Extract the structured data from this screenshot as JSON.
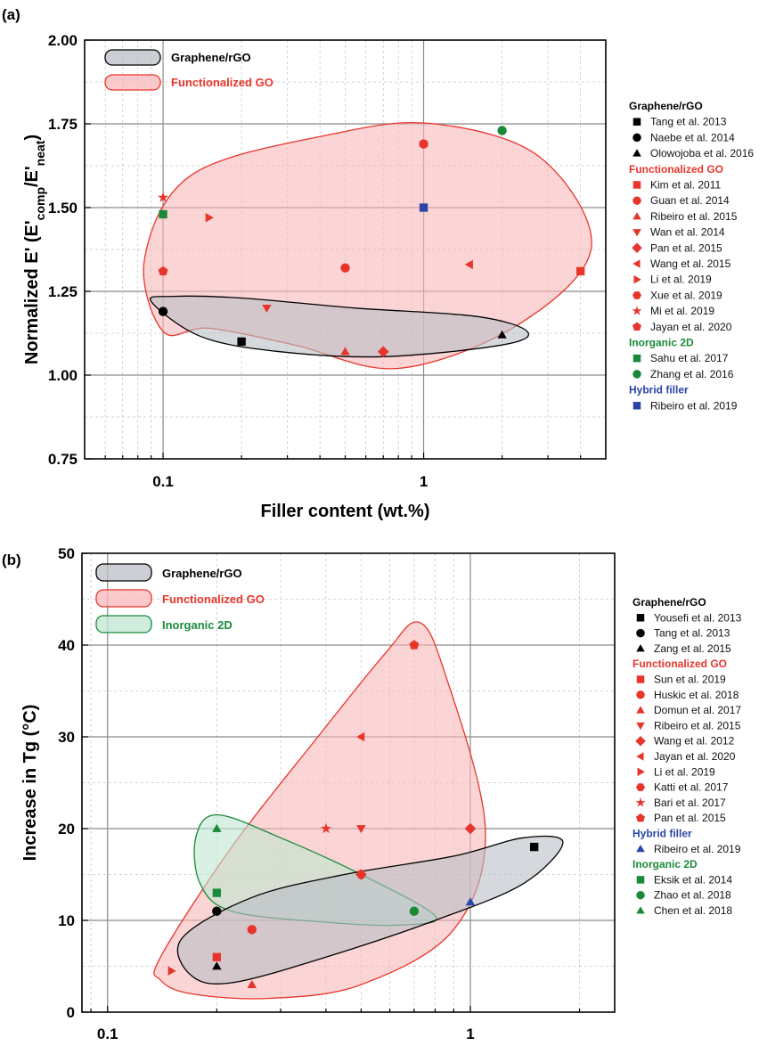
{
  "colors": {
    "graphene": "#000000",
    "functionalized": "#e8352b",
    "inorganic": "#1a8a3a",
    "hybrid": "#2a44a8",
    "graphene_fill": "#b9bec4",
    "functionalized_fill": "#f8b7b9",
    "inorganic_fill": "#bfe6d2"
  },
  "chart_data": [
    {
      "id": "a",
      "panel_label": "(a)",
      "type": "scatter",
      "xscale": "log",
      "xlim": [
        0.05,
        5
      ],
      "ylim": [
        0.75,
        2.0
      ],
      "xticks": [
        {
          "v": 0.1,
          "label": "0.1"
        },
        {
          "v": 1,
          "label": "1"
        }
      ],
      "yticks": [
        {
          "v": 0.75,
          "label": "0.75"
        },
        {
          "v": 1.0,
          "label": "1.00"
        },
        {
          "v": 1.25,
          "label": "1.25"
        },
        {
          "v": 1.5,
          "label": "1.50"
        },
        {
          "v": 1.75,
          "label": "1.75"
        },
        {
          "v": 2.0,
          "label": "2.00"
        }
      ],
      "xlabel": "Filler content (wt.%)",
      "ylabel_parts": [
        "Normalized E' (E'",
        "comp",
        "/E'",
        "neat",
        ")"
      ],
      "grid": true,
      "legend_position": "right",
      "box_legend": [
        {
          "label": "Graphene/rGO",
          "color": "graphene"
        },
        {
          "label": "Functionalized GO",
          "color": "functionalized"
        }
      ],
      "regions": [
        {
          "group": "functionalized",
          "points": [
            [
              0.1,
              1.13
            ],
            [
              0.085,
              1.35
            ],
            [
              0.13,
              1.6
            ],
            [
              0.45,
              1.72
            ],
            [
              1.1,
              1.75
            ],
            [
              2.8,
              1.65
            ],
            [
              4.4,
              1.38
            ],
            [
              2.3,
              1.15
            ],
            [
              0.8,
              1.02
            ],
            [
              0.32,
              1.09
            ],
            [
              0.15,
              1.14
            ]
          ]
        },
        {
          "group": "graphene",
          "points": [
            [
              0.09,
              1.22
            ],
            [
              0.14,
              1.115
            ],
            [
              0.28,
              1.07
            ],
            [
              0.7,
              1.055
            ],
            [
              2.0,
              1.09
            ],
            [
              2.5,
              1.13
            ],
            [
              1.6,
              1.175
            ],
            [
              0.55,
              1.2
            ],
            [
              0.2,
              1.23
            ],
            [
              0.11,
              1.235
            ]
          ]
        }
      ],
      "legend": [
        {
          "header": "Graphene/rGO",
          "color": "graphene"
        },
        {
          "label": "Tang et al. 2013",
          "color": "graphene",
          "marker": "square"
        },
        {
          "label": "Naebe et al. 2014",
          "color": "graphene",
          "marker": "circle"
        },
        {
          "label": "Olowojoba et al. 2016",
          "color": "graphene",
          "marker": "tri-up"
        },
        {
          "header": "Functionalized GO",
          "color": "functionalized"
        },
        {
          "label": "Kim et al. 2011",
          "color": "functionalized",
          "marker": "square"
        },
        {
          "label": "Guan et al. 2014",
          "color": "functionalized",
          "marker": "circle"
        },
        {
          "label": "Ribeiro et al. 2015",
          "color": "functionalized",
          "marker": "tri-up"
        },
        {
          "label": "Wan et al. 2014",
          "color": "functionalized",
          "marker": "tri-down"
        },
        {
          "label": "Pan et al. 2015",
          "color": "functionalized",
          "marker": "diamond"
        },
        {
          "label": "Wang et al. 2015",
          "color": "functionalized",
          "marker": "tri-left"
        },
        {
          "label": "Li et al. 2019",
          "color": "functionalized",
          "marker": "tri-right"
        },
        {
          "label": "Xue et al. 2019",
          "color": "functionalized",
          "marker": "hexagon"
        },
        {
          "label": "Mi et al. 2019",
          "color": "functionalized",
          "marker": "star"
        },
        {
          "label": "Jayan et al. 2020",
          "color": "functionalized",
          "marker": "pentagon"
        },
        {
          "header": "Inorganic 2D",
          "color": "inorganic"
        },
        {
          "label": "Sahu et al. 2017",
          "color": "inorganic",
          "marker": "square"
        },
        {
          "label": "Zhang et al. 2016",
          "color": "inorganic",
          "marker": "circle"
        },
        {
          "header": "Hybrid filler",
          "color": "hybrid"
        },
        {
          "label": "Ribeiro et al. 2019",
          "color": "hybrid",
          "marker": "square"
        }
      ],
      "points": [
        {
          "x": 0.2,
          "y": 1.1,
          "color": "graphene",
          "marker": "square"
        },
        {
          "x": 0.1,
          "y": 1.19,
          "color": "graphene",
          "marker": "circle"
        },
        {
          "x": 2.0,
          "y": 1.12,
          "color": "graphene",
          "marker": "tri-up"
        },
        {
          "x": 4.0,
          "y": 1.31,
          "color": "functionalized",
          "marker": "square"
        },
        {
          "x": 1.0,
          "y": 1.69,
          "color": "functionalized",
          "marker": "circle"
        },
        {
          "x": 0.5,
          "y": 1.32,
          "color": "functionalized",
          "marker": "circle"
        },
        {
          "x": 0.5,
          "y": 1.07,
          "color": "functionalized",
          "marker": "tri-up"
        },
        {
          "x": 0.25,
          "y": 1.2,
          "color": "functionalized",
          "marker": "tri-down"
        },
        {
          "x": 0.7,
          "y": 1.07,
          "color": "functionalized",
          "marker": "diamond"
        },
        {
          "x": 1.5,
          "y": 1.33,
          "color": "functionalized",
          "marker": "tri-left"
        },
        {
          "x": 0.15,
          "y": 1.47,
          "color": "functionalized",
          "marker": "tri-right"
        },
        {
          "x": 0.1,
          "y": 1.53,
          "color": "functionalized",
          "marker": "star"
        },
        {
          "x": 0.1,
          "y": 1.31,
          "color": "functionalized",
          "marker": "pentagon"
        },
        {
          "x": 0.1,
          "y": 1.48,
          "color": "inorganic",
          "marker": "square"
        },
        {
          "x": 2.0,
          "y": 1.73,
          "color": "inorganic",
          "marker": "circle"
        },
        {
          "x": 1.0,
          "y": 1.5,
          "color": "hybrid",
          "marker": "square"
        }
      ]
    },
    {
      "id": "b",
      "panel_label": "(b)",
      "type": "scatter",
      "xscale": "log",
      "xlim": [
        0.085,
        2.5
      ],
      "ylim": [
        0,
        50
      ],
      "xticks": [
        {
          "v": 0.1,
          "label": "0.1"
        },
        {
          "v": 1,
          "label": "1"
        }
      ],
      "yticks": [
        {
          "v": 0,
          "label": "0"
        },
        {
          "v": 10,
          "label": "10"
        },
        {
          "v": 20,
          "label": "20"
        },
        {
          "v": 30,
          "label": "30"
        },
        {
          "v": 40,
          "label": "40"
        },
        {
          "v": 50,
          "label": "50"
        }
      ],
      "xlabel": "Filler content (wt.%)",
      "ylabel_parts": [
        "Increase in Tg (°C)"
      ],
      "grid": true,
      "legend_position": "right",
      "box_legend": [
        {
          "label": "Graphene/rGO",
          "color": "graphene"
        },
        {
          "label": "Functionalized GO",
          "color": "functionalized"
        },
        {
          "label": "Inorganic 2D",
          "color": "inorganic"
        }
      ],
      "regions": [
        {
          "group": "functionalized",
          "points": [
            [
              0.14,
              3.5
            ],
            [
              0.14,
              6
            ],
            [
              0.22,
              18
            ],
            [
              0.38,
              30
            ],
            [
              0.58,
              39
            ],
            [
              0.72,
              42.5
            ],
            [
              0.85,
              37
            ],
            [
              1.1,
              20
            ],
            [
              0.9,
              9
            ],
            [
              0.5,
              3
            ],
            [
              0.28,
              1.5
            ],
            [
              0.17,
              2
            ]
          ]
        },
        {
          "group": "inorganic",
          "points": [
            [
              0.2,
              21.5
            ],
            [
              0.3,
              19
            ],
            [
              0.5,
              15
            ],
            [
              0.8,
              10.5
            ],
            [
              0.65,
              9.5
            ],
            [
              0.4,
              9.8
            ],
            [
              0.22,
              11
            ],
            [
              0.18,
              14
            ],
            [
              0.175,
              19
            ]
          ]
        },
        {
          "group": "graphene",
          "points": [
            [
              0.17,
              4
            ],
            [
              0.16,
              8
            ],
            [
              0.25,
              12.5
            ],
            [
              0.45,
              15
            ],
            [
              0.9,
              17
            ],
            [
              1.4,
              19
            ],
            [
              1.8,
              18.5
            ],
            [
              1.4,
              14
            ],
            [
              0.8,
              10
            ],
            [
              0.4,
              6
            ],
            [
              0.22,
              3.2
            ]
          ]
        }
      ],
      "legend": [
        {
          "header": "Graphene/rGO",
          "color": "graphene"
        },
        {
          "label": "Yousefi et al. 2013",
          "color": "graphene",
          "marker": "square"
        },
        {
          "label": "Tang et al. 2013",
          "color": "graphene",
          "marker": "circle"
        },
        {
          "label": "Zang et al. 2015",
          "color": "graphene",
          "marker": "tri-up"
        },
        {
          "header": "Functionalized GO",
          "color": "functionalized"
        },
        {
          "label": "Sun et al. 2019",
          "color": "functionalized",
          "marker": "square"
        },
        {
          "label": "Huskic et al. 2018",
          "color": "functionalized",
          "marker": "circle"
        },
        {
          "label": "Domun et al. 2017",
          "color": "functionalized",
          "marker": "tri-up"
        },
        {
          "label": "Ribeiro et al. 2015",
          "color": "functionalized",
          "marker": "tri-down"
        },
        {
          "label": "Wang et al. 2012",
          "color": "functionalized",
          "marker": "diamond"
        },
        {
          "label": "Jayan et al. 2020",
          "color": "functionalized",
          "marker": "tri-left"
        },
        {
          "label": "Li et al. 2019",
          "color": "functionalized",
          "marker": "tri-right"
        },
        {
          "label": "Katti et al. 2017",
          "color": "functionalized",
          "marker": "hexagon"
        },
        {
          "label": "Bari et al. 2017",
          "color": "functionalized",
          "marker": "star"
        },
        {
          "label": "Pan et al. 2015",
          "color": "functionalized",
          "marker": "pentagon"
        },
        {
          "header": "Hybrid filler",
          "color": "hybrid"
        },
        {
          "label": "Ribeiro et al. 2019",
          "color": "hybrid",
          "marker": "tri-up"
        },
        {
          "header": "Inorganic 2D",
          "color": "inorganic"
        },
        {
          "label": "Eksik et al. 2014",
          "color": "inorganic",
          "marker": "square"
        },
        {
          "label": "Zhao et al. 2018",
          "color": "inorganic",
          "marker": "circle"
        },
        {
          "label": "Chen et al. 2018",
          "color": "inorganic",
          "marker": "tri-up"
        }
      ],
      "points": [
        {
          "x": 1.5,
          "y": 18,
          "color": "graphene",
          "marker": "square"
        },
        {
          "x": 0.2,
          "y": 11,
          "color": "graphene",
          "marker": "circle"
        },
        {
          "x": 0.2,
          "y": 5,
          "color": "graphene",
          "marker": "tri-up"
        },
        {
          "x": 0.2,
          "y": 6,
          "color": "functionalized",
          "marker": "square"
        },
        {
          "x": 0.25,
          "y": 9,
          "color": "functionalized",
          "marker": "circle"
        },
        {
          "x": 0.25,
          "y": 3,
          "color": "functionalized",
          "marker": "tri-up"
        },
        {
          "x": 0.5,
          "y": 20,
          "color": "functionalized",
          "marker": "tri-down"
        },
        {
          "x": 1.0,
          "y": 20,
          "color": "functionalized",
          "marker": "diamond"
        },
        {
          "x": 0.5,
          "y": 15,
          "color": "functionalized",
          "marker": "diamond"
        },
        {
          "x": 0.5,
          "y": 30,
          "color": "functionalized",
          "marker": "tri-left"
        },
        {
          "x": 0.15,
          "y": 4.5,
          "color": "functionalized",
          "marker": "tri-right"
        },
        {
          "x": 0.5,
          "y": 15,
          "color": "functionalized",
          "marker": "hexagon"
        },
        {
          "x": 0.4,
          "y": 20,
          "color": "functionalized",
          "marker": "star"
        },
        {
          "x": 0.7,
          "y": 40,
          "color": "functionalized",
          "marker": "pentagon"
        },
        {
          "x": 1.0,
          "y": 12,
          "color": "hybrid",
          "marker": "tri-up"
        },
        {
          "x": 0.2,
          "y": 13,
          "color": "inorganic",
          "marker": "square"
        },
        {
          "x": 0.7,
          "y": 11,
          "color": "inorganic",
          "marker": "circle"
        },
        {
          "x": 0.2,
          "y": 20,
          "color": "inorganic",
          "marker": "tri-up"
        }
      ]
    }
  ]
}
